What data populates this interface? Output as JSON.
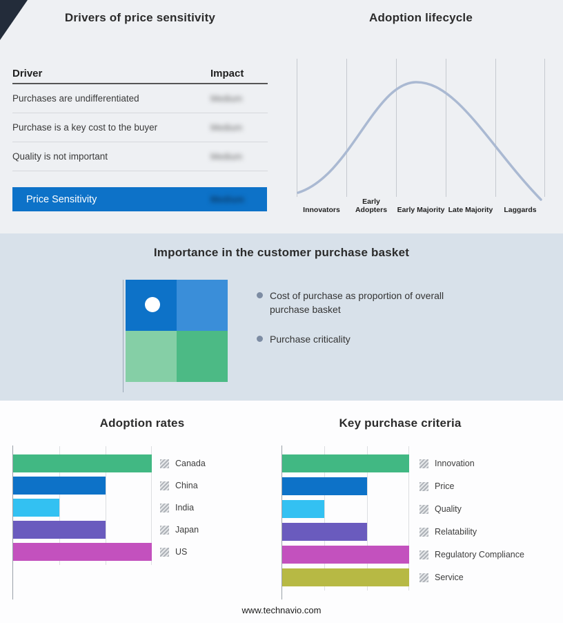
{
  "page": {
    "site_url": "www.technavio.com",
    "accent_blue": "#0d72c8",
    "top_background": "#eef0f3",
    "band_background": "#d8e1ea"
  },
  "drivers": {
    "title": "Drivers of price sensitivity",
    "col_driver": "Driver",
    "col_impact": "Impact",
    "rows": [
      {
        "driver": "Purchases are undifferentiated",
        "impact": "Medium"
      },
      {
        "driver": "Purchase is a key cost to the buyer",
        "impact": "Medium"
      },
      {
        "driver": "Quality is not important",
        "impact": "Medium"
      }
    ],
    "summary_label": "Price Sensitivity",
    "summary_impact": "Medium"
  },
  "lifecycle": {
    "title": "Adoption lifecycle",
    "curve_color": "#aab9d2"
  },
  "basket": {
    "title": "Importance in the customer purchase basket",
    "bullets": [
      "Cost of purchase as proportion of overall purchase basket",
      "Purchase criticality"
    ],
    "quadrants": {
      "top_left": "#0d72c8",
      "top_right": "#3a8ed9",
      "bottom_left": "#85cfa6",
      "bottom_right": "#4cba85"
    }
  },
  "chart_data": [
    {
      "type": "bar",
      "title": "Adoption rates",
      "orientation": "horizontal",
      "categories": [
        "Canada",
        "China",
        "India",
        "Japan",
        "US"
      ],
      "values": [
        3,
        2,
        1,
        2,
        3
      ],
      "colors": [
        "#41b883",
        "#0d72c8",
        "#33c1f2",
        "#6a5bbe",
        "#c351be"
      ],
      "xlim": [
        0,
        3
      ],
      "grid": true,
      "legend_position": "right"
    },
    {
      "type": "bar",
      "title": "Key purchase criteria",
      "orientation": "horizontal",
      "categories": [
        "Innovation",
        "Price",
        "Quality",
        "Relatability",
        "Regulatory Compliance",
        "Service"
      ],
      "values": [
        3,
        2,
        1,
        2,
        3,
        3
      ],
      "colors": [
        "#41b883",
        "#0d72c8",
        "#33c1f2",
        "#6a5bbe",
        "#c351be",
        "#b7b944"
      ],
      "xlim": [
        0,
        3
      ],
      "grid": true,
      "legend_position": "right"
    },
    {
      "type": "line",
      "title": "Adoption lifecycle",
      "shape": "bell curve",
      "categories": [
        "Innovators",
        "Early Adopters",
        "Early Majority",
        "Late Majority",
        "Laggards"
      ]
    }
  ]
}
